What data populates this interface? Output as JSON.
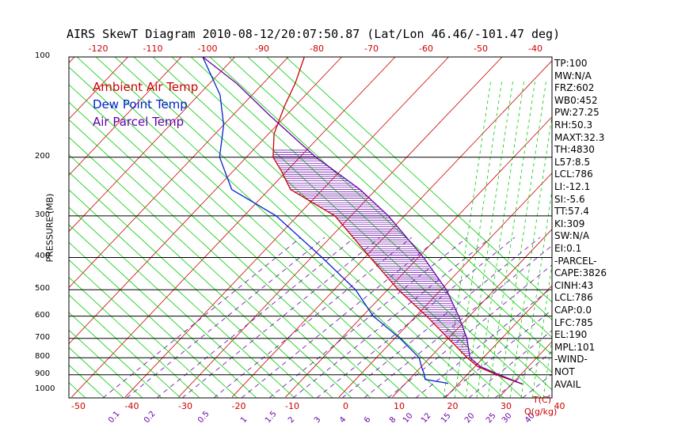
{
  "title": "AIRS SkewT Diagram 2010-08-12/20:07:50.87 (Lat/Lon 46.46/-101.47 deg)",
  "legend": [
    {
      "label": "Ambient Air Temp",
      "color": "#cc0000"
    },
    {
      "label": "Dew Point Temp",
      "color": "#0022cc"
    },
    {
      "label": "Air Parcel Temp",
      "color": "#6600aa"
    }
  ],
  "y_axis_label": "PRESSURE (MB)",
  "pressure_ticks": [
    "100",
    "200",
    "300",
    "400",
    "500",
    "600",
    "700",
    "800",
    "900",
    "1000"
  ],
  "top_temp_ticks": [
    "-120",
    "-110",
    "-100",
    "-90",
    "-80",
    "-70",
    "-60",
    "-50",
    "-40"
  ],
  "bottom_temp_ticks": [
    "-50",
    "-40",
    "-30",
    "-20",
    "-10",
    "0",
    "10",
    "20",
    "30",
    "40"
  ],
  "temp_unit_label": "T(C)",
  "mixing_ratio_labels": [
    "0.1",
    "0.2",
    "0.5",
    "1",
    "1.5",
    "2",
    "3",
    "4",
    "6",
    "8",
    "10",
    "12",
    "15",
    "20",
    "25",
    "30",
    "40"
  ],
  "mixing_ratio_unit_label": "Q(g/kg)",
  "indices": [
    "TP:100",
    "MW:N/A",
    "FRZ:602",
    "WB0:452",
    "PW:27.25",
    "RH:50.3",
    "MAXT:32.3",
    "TH:4830",
    "L57:8.5",
    "LCL:786",
    "LI:-12.1",
    "SI:-5.6",
    "TT:57.4",
    "KI:309",
    "SW:N/A",
    "EI:0.1",
    "-PARCEL-",
    "CAPE:3826",
    "CINH:43",
    "LCL:786",
    "CAP:0.0",
    "LFC:785",
    "EL:190",
    "MPL:101",
    "-WIND-",
    "NOT",
    "AVAIL"
  ],
  "colors": {
    "dry_adiabat": "#cc0000",
    "moist_adiabat": "#00cc00",
    "mixing_ratio": "#6600aa",
    "ambient": "#cc0000",
    "dewpoint": "#0022cc",
    "parcel": "#6600aa",
    "isobar": "#000000"
  },
  "chart_data": {
    "type": "line",
    "title": "AIRS SkewT Diagram 2010-08-12/20:07:50.87 (Lat/Lon 46.46/-101.47 deg)",
    "ylabel": "PRESSURE (MB)",
    "xlabel": "T(C)",
    "y_scale": "log",
    "ylim": [
      1000,
      100
    ],
    "xlim": [
      -50,
      40
    ],
    "series": [
      {
        "name": "Ambient Air Temp",
        "points": [
          {
            "p": 960,
            "t": 32
          },
          {
            "p": 900,
            "t": 25.5
          },
          {
            "p": 850,
            "t": 20.5
          },
          {
            "p": 800,
            "t": 17
          },
          {
            "p": 700,
            "t": 10
          },
          {
            "p": 600,
            "t": 2
          },
          {
            "p": 500,
            "t": -8
          },
          {
            "p": 400,
            "t": -19
          },
          {
            "p": 300,
            "t": -33
          },
          {
            "p": 250,
            "t": -46
          },
          {
            "p": 220,
            "t": -51
          },
          {
            "p": 200,
            "t": -55
          },
          {
            "p": 170,
            "t": -59
          },
          {
            "p": 140,
            "t": -62
          },
          {
            "p": 120,
            "t": -64
          },
          {
            "p": 100,
            "t": -67
          }
        ]
      },
      {
        "name": "Dew Point Temp",
        "points": [
          {
            "p": 955,
            "t": 18
          },
          {
            "p": 930,
            "t": 13
          },
          {
            "p": 900,
            "t": 12
          },
          {
            "p": 850,
            "t": 10
          },
          {
            "p": 800,
            "t": 8
          },
          {
            "p": 700,
            "t": 1
          },
          {
            "p": 600,
            "t": -8
          },
          {
            "p": 500,
            "t": -16
          },
          {
            "p": 400,
            "t": -28
          },
          {
            "p": 300,
            "t": -44
          },
          {
            "p": 250,
            "t": -57
          },
          {
            "p": 200,
            "t": -65
          },
          {
            "p": 160,
            "t": -70
          },
          {
            "p": 130,
            "t": -76
          },
          {
            "p": 100,
            "t": -86
          }
        ]
      },
      {
        "name": "Air Parcel Temp",
        "points": [
          {
            "p": 960,
            "t": 32
          },
          {
            "p": 900,
            "t": 26
          },
          {
            "p": 850,
            "t": 21
          },
          {
            "p": 800,
            "t": 17.5
          },
          {
            "p": 700,
            "t": 13.5
          },
          {
            "p": 600,
            "t": 8
          },
          {
            "p": 500,
            "t": 1
          },
          {
            "p": 400,
            "t": -9
          },
          {
            "p": 300,
            "t": -23
          },
          {
            "p": 250,
            "t": -33
          },
          {
            "p": 200,
            "t": -47
          },
          {
            "p": 150,
            "t": -63
          },
          {
            "p": 120,
            "t": -75
          },
          {
            "p": 100,
            "t": -86
          }
        ]
      }
    ]
  }
}
